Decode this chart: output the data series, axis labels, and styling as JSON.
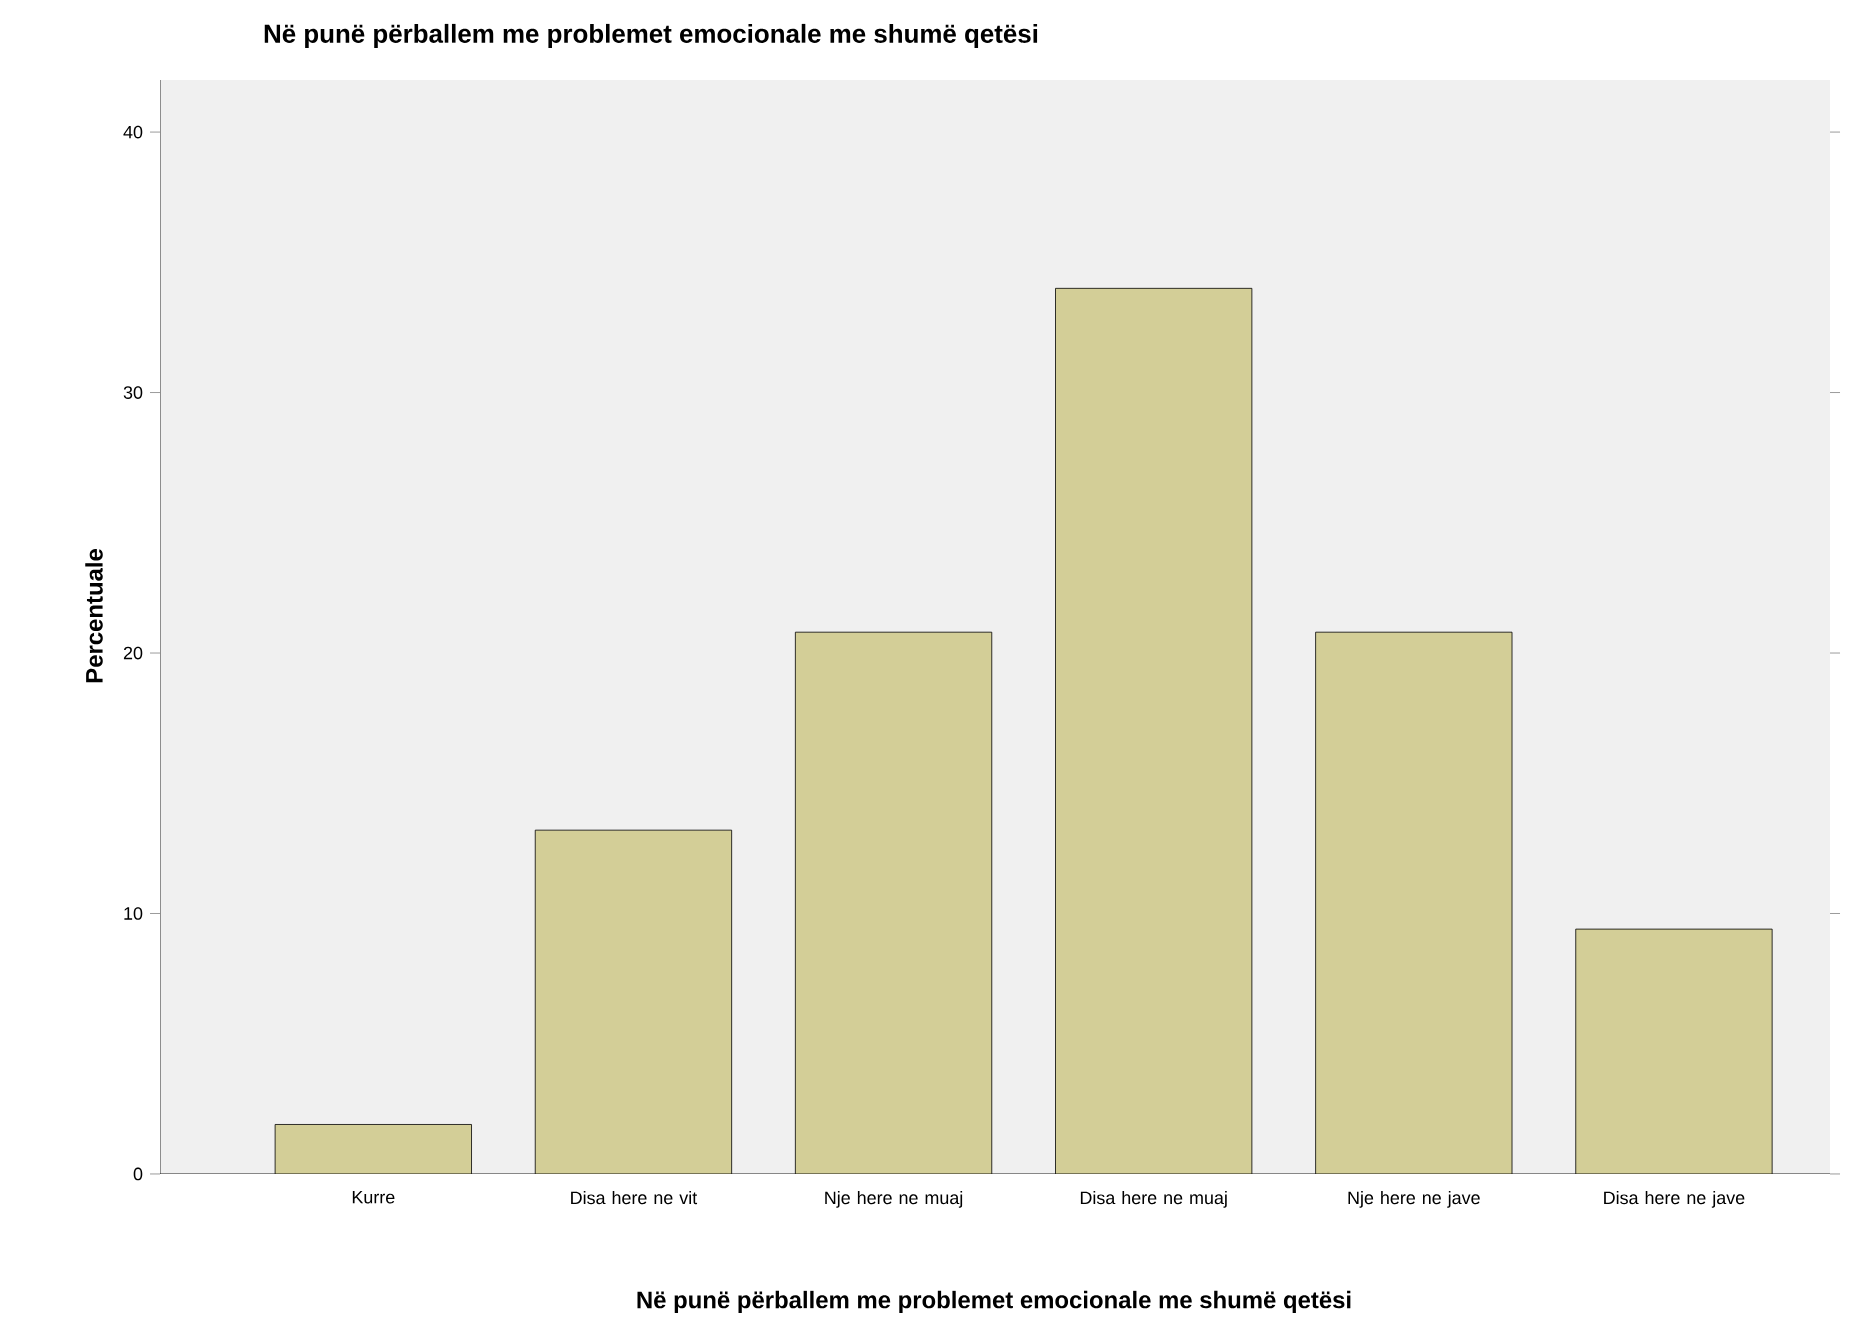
{
  "chart_data": {
    "type": "bar",
    "title": "Në punë përballem me problemet emocionale me shumë qetësi",
    "xlabel": "Në punë përballem me problemet emocionale me shumë qetësi",
    "ylabel": "Percentuale",
    "categories": [
      "Kurre",
      "Disa here ne vit",
      "Nje here ne muaj",
      "Disa here ne muaj",
      "Nje here ne jave",
      "Disa here ne jave"
    ],
    "values": [
      1.9,
      13.2,
      20.8,
      34.0,
      20.8,
      9.4
    ],
    "color": "#d3ce97",
    "ylim": [
      0,
      42
    ],
    "yticks": [
      0,
      10,
      20,
      30,
      40
    ]
  }
}
